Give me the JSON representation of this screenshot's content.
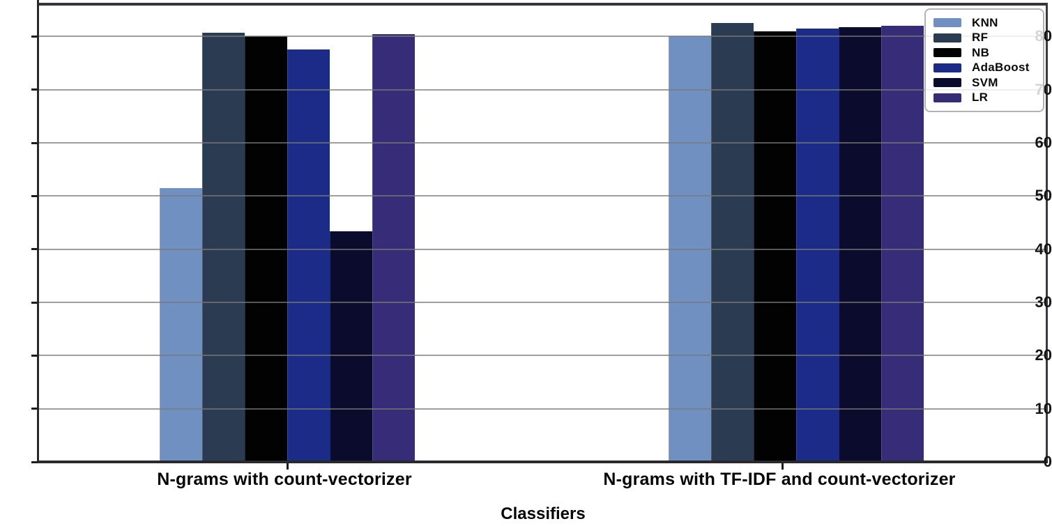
{
  "chart_data": {
    "type": "bar",
    "title": "",
    "xlabel": "Classifiers",
    "ylabel": "",
    "ylim": [
      0,
      85.8
    ],
    "yticks": [
      0,
      10,
      20,
      30,
      40,
      50,
      60,
      70,
      80
    ],
    "grid": "horizontal",
    "legend_position": "upper right",
    "categories": [
      "N-grams with count-vectorizer",
      "N-grams with TF-IDF and count-vectorizer"
    ],
    "series": [
      {
        "name": "KNN",
        "color": "#7190c2",
        "values": [
          51.5,
          80.0
        ]
      },
      {
        "name": "RF",
        "color": "#2b3b52",
        "values": [
          80.7,
          82.5
        ]
      },
      {
        "name": "NB",
        "color": "#020202",
        "values": [
          80.0,
          81.0
        ]
      },
      {
        "name": "AdaBoost",
        "color": "#1c2b87",
        "values": [
          77.5,
          81.5
        ]
      },
      {
        "name": "SVM",
        "color": "#0b0b2d",
        "values": [
          43.3,
          81.8
        ]
      },
      {
        "name": "LR",
        "color": "#372c77",
        "values": [
          80.5,
          82.0
        ]
      }
    ]
  }
}
